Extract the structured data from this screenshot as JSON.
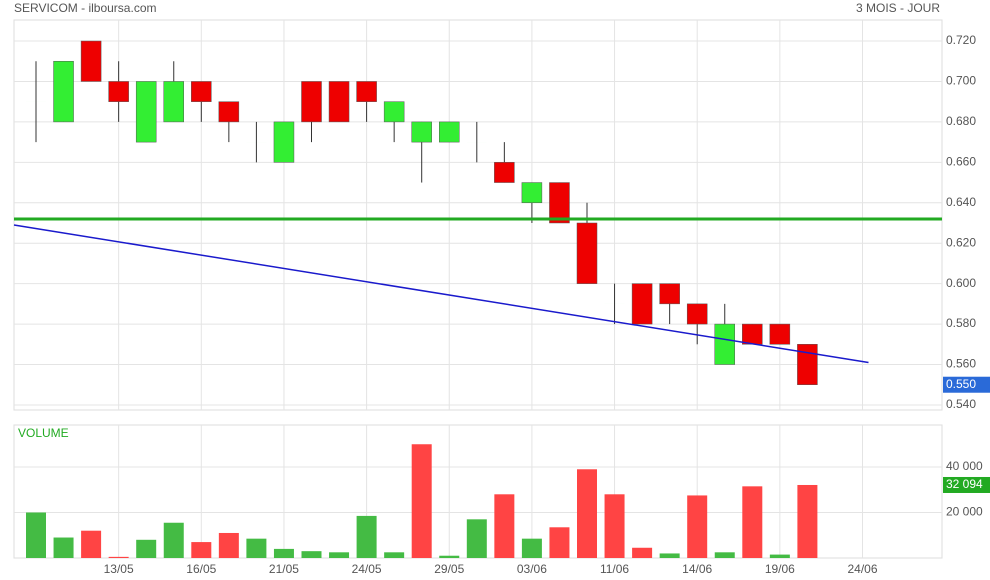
{
  "chart_data": [
    {
      "type": "candlestick",
      "title": "SERVICOM - ilboursa.com",
      "subtitle": "3 MOIS - JOUR",
      "categories": [
        null,
        null,
        null,
        "13/05",
        null,
        null,
        "16/05",
        null,
        null,
        "21/05",
        null,
        null,
        "24/05",
        null,
        null,
        "29/05",
        null,
        null,
        "03/06",
        null,
        null,
        "11/06",
        null,
        null,
        "14/06",
        null,
        null,
        "19/06",
        null,
        null,
        "24/06"
      ],
      "open": [
        0.69,
        0.68,
        0.72,
        0.7,
        0.67,
        0.68,
        0.7,
        0.69,
        0.67,
        0.66,
        0.7,
        0.7,
        0.7,
        0.68,
        0.67,
        0.67,
        0.67,
        0.66,
        0.64,
        0.65,
        0.63,
        0.59,
        0.6,
        0.6,
        0.59,
        0.56,
        0.58,
        0.58,
        0.57,
        null,
        null
      ],
      "high": [
        0.71,
        0.71,
        0.72,
        0.71,
        0.7,
        0.71,
        0.7,
        0.69,
        0.68,
        0.68,
        0.7,
        0.7,
        0.7,
        0.69,
        0.68,
        0.68,
        0.68,
        0.67,
        0.65,
        0.65,
        0.64,
        0.6,
        0.6,
        0.6,
        0.59,
        0.59,
        0.58,
        0.58,
        0.57,
        null,
        null
      ],
      "low": [
        0.67,
        0.68,
        0.7,
        0.68,
        0.67,
        0.68,
        0.68,
        0.67,
        0.66,
        0.66,
        0.67,
        0.68,
        0.68,
        0.67,
        0.65,
        0.67,
        0.66,
        0.65,
        0.63,
        0.63,
        0.6,
        0.58,
        0.58,
        0.58,
        0.57,
        0.56,
        0.57,
        0.57,
        0.55,
        null,
        null
      ],
      "close": [
        0.69,
        0.71,
        0.7,
        0.69,
        0.7,
        0.7,
        0.69,
        0.68,
        0.67,
        0.68,
        0.68,
        0.68,
        0.69,
        0.69,
        0.68,
        0.68,
        0.67,
        0.65,
        0.65,
        0.63,
        0.6,
        0.59,
        0.58,
        0.59,
        0.58,
        0.58,
        0.57,
        0.57,
        0.55,
        null,
        null
      ],
      "up_color": "#33ee33",
      "down_color": "#ee0000",
      "ylim": [
        0.5375,
        0.7304
      ],
      "yticks": [
        {
          "value": 0.54,
          "label": "0.540"
        },
        {
          "value": 0.56,
          "label": "0.560"
        },
        {
          "value": 0.58,
          "label": "0.580"
        },
        {
          "value": 0.6,
          "label": "0.600"
        },
        {
          "value": 0.62,
          "label": "0.620"
        },
        {
          "value": 0.64,
          "label": "0.640"
        },
        {
          "value": 0.66,
          "label": "0.660"
        },
        {
          "value": 0.68,
          "label": "0.680"
        },
        {
          "value": 0.7,
          "label": "0.700"
        },
        {
          "value": 0.72,
          "label": "0.720"
        }
      ],
      "hline": {
        "value": 0.632,
        "color": "#22aa22"
      },
      "trendline": {
        "values": [
          0.629,
          0.561
        ],
        "color": "#1a1acc"
      },
      "last_value": {
        "value": 0.55,
        "label": "0.550"
      },
      "grid": true
    },
    {
      "type": "bar",
      "title": "VOLUME",
      "values": [
        20000,
        9000,
        12000,
        500,
        8000,
        15500,
        7000,
        11000,
        8500,
        4000,
        3000,
        2500,
        18500,
        2500,
        50000,
        1000,
        17000,
        28000,
        8500,
        13500,
        39000,
        28000,
        4500,
        2000,
        27500,
        2500,
        31500,
        1500,
        32094,
        null,
        null
      ],
      "colors": [
        "#44bb44",
        "#44bb44",
        "#ff4444",
        "#ff4444",
        "#44bb44",
        "#44bb44",
        "#ff4444",
        "#ff4444",
        "#44bb44",
        "#44bb44",
        "#44bb44",
        "#44bb44",
        "#44bb44",
        "#44bb44",
        "#ff4444",
        "#44bb44",
        "#44bb44",
        "#ff4444",
        "#44bb44",
        "#ff4444",
        "#ff4444",
        "#ff4444",
        "#ff4444",
        "#44bb44",
        "#ff4444",
        "#44bb44",
        "#ff4444",
        "#44bb44",
        "#ff4444",
        null,
        null
      ],
      "ylim": [
        0,
        58460
      ],
      "yticks": [
        {
          "value": 20000,
          "label": "20 000"
        },
        {
          "value": 40000,
          "label": "40 000"
        }
      ],
      "last_value": {
        "value": 32094,
        "label": "32 094",
        "color": "#22aa22"
      },
      "grid": true
    }
  ]
}
